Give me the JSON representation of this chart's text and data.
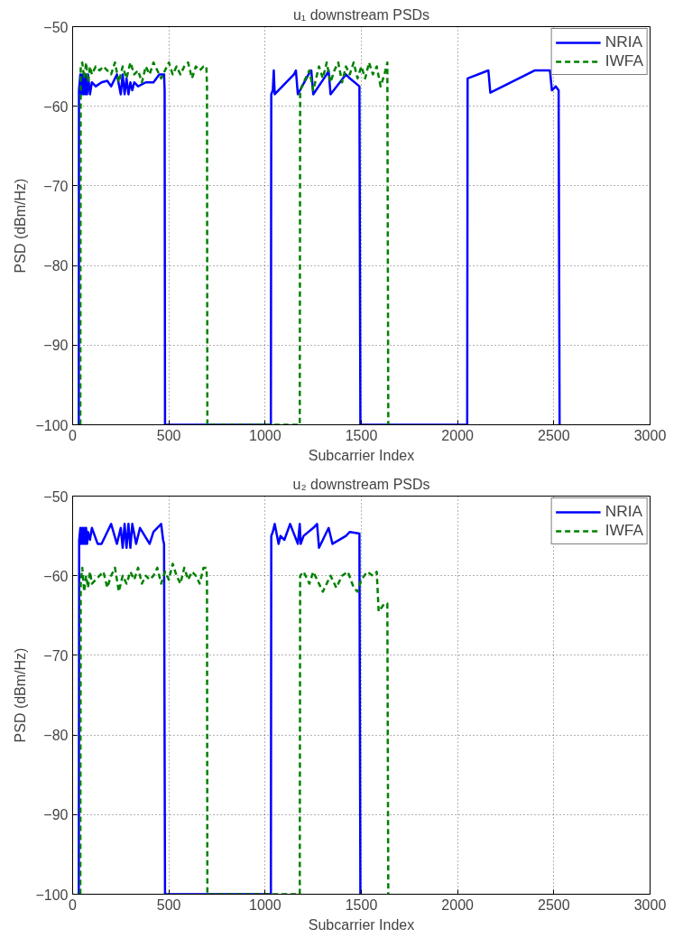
{
  "chart_data": [
    {
      "type": "line",
      "title": "u₁ downstream PSDs",
      "xlabel": "Subcarrier Index",
      "ylabel": "PSD (dBm/Hz)",
      "xlim": [
        0,
        3000
      ],
      "ylim": [
        -100,
        -50
      ],
      "xticks": [
        0,
        500,
        1000,
        1500,
        2000,
        2500,
        3000
      ],
      "yticks": [
        -100,
        -90,
        -80,
        -70,
        -60,
        -50
      ],
      "grid": true,
      "legend": "top right",
      "series": [
        {
          "name": "NRIA",
          "color": "#0000ff",
          "line_style": "solid",
          "x": [
            32,
            33,
            40,
            45,
            50,
            55,
            60,
            65,
            70,
            75,
            80,
            90,
            100,
            120,
            150,
            180,
            200,
            230,
            250,
            260,
            270,
            280,
            290,
            300,
            310,
            320,
            340,
            380,
            420,
            450,
            475,
            478,
            480,
            1030,
            1032,
            1040,
            1045,
            1050,
            1150,
            1160,
            1170,
            1230,
            1240,
            1250,
            1320,
            1330,
            1340,
            1420,
            1440,
            1490,
            1495,
            2050,
            2052,
            2160,
            2170,
            2400,
            2480,
            2490,
            2510,
            2525,
            2530
          ],
          "values": [
            -100,
            -58,
            -56,
            -58.5,
            -56,
            -58.5,
            -56,
            -58.5,
            -56,
            -58.5,
            -56,
            -58.5,
            -57,
            -57.5,
            -57,
            -56.8,
            -57.5,
            -56,
            -58.5,
            -56,
            -58.5,
            -56.5,
            -58.5,
            -57,
            -58,
            -57,
            -57.5,
            -57,
            -57,
            -56,
            -56,
            -58,
            -100,
            -100,
            -58.5,
            -58,
            -55.5,
            -58.5,
            -56,
            -55.5,
            -58.5,
            -55.8,
            -55.5,
            -58.5,
            -56,
            -55.5,
            -58.5,
            -56,
            -56.5,
            -57.5,
            -100,
            -100,
            -56.5,
            -55.5,
            -58.3,
            -55.5,
            -55.5,
            -58,
            -57.5,
            -58,
            -100
          ]
        },
        {
          "name": "IWFA",
          "color": "#008000",
          "line_style": "dashed",
          "x": [
            40,
            42,
            50,
            60,
            70,
            80,
            90,
            100,
            120,
            140,
            160,
            180,
            200,
            220,
            240,
            260,
            280,
            300,
            320,
            340,
            360,
            380,
            400,
            420,
            440,
            460,
            480,
            500,
            520,
            540,
            560,
            580,
            600,
            620,
            640,
            660,
            680,
            695,
            698,
            700,
            1180,
            1182,
            1200,
            1230,
            1250,
            1280,
            1300,
            1320,
            1340,
            1360,
            1380,
            1400,
            1420,
            1440,
            1460,
            1480,
            1500,
            1520,
            1540,
            1560,
            1580,
            1600,
            1620,
            1635,
            1640
          ],
          "values": [
            -100,
            -55,
            -54.5,
            -56.5,
            -54.5,
            -57,
            -55,
            -56,
            -55,
            -55.5,
            -55,
            -55.5,
            -56,
            -54.5,
            -57,
            -55,
            -56.5,
            -54.5,
            -56,
            -55.5,
            -57,
            -55,
            -56,
            -54.5,
            -55.5,
            -56.5,
            -55.5,
            -54.5,
            -56,
            -55,
            -56,
            -55,
            -54.5,
            -56.5,
            -55,
            -55.5,
            -55,
            -55,
            -57.5,
            -100,
            -100,
            -58,
            -57,
            -55.5,
            -58,
            -55,
            -56.5,
            -54.5,
            -57,
            -55.5,
            -54.5,
            -57,
            -55,
            -56,
            -54.5,
            -56.5,
            -55,
            -56.5,
            -54.5,
            -56,
            -55,
            -57.5,
            -56,
            -54.5,
            -100
          ]
        }
      ]
    },
    {
      "type": "line",
      "title": "u₂ downstream PSDs",
      "xlabel": "Subcarrier Index",
      "ylabel": "PSD (dBm/Hz)",
      "xlim": [
        0,
        3000
      ],
      "ylim": [
        -100,
        -50
      ],
      "xticks": [
        0,
        500,
        1000,
        1500,
        2000,
        2500,
        3000
      ],
      "yticks": [
        -100,
        -90,
        -80,
        -70,
        -60,
        -50
      ],
      "grid": true,
      "legend": "top right",
      "series": [
        {
          "name": "NRIA",
          "color": "#0000ff",
          "line_style": "solid",
          "x": [
            32,
            34,
            40,
            45,
            50,
            55,
            60,
            65,
            70,
            75,
            80,
            90,
            100,
            130,
            150,
            180,
            200,
            230,
            250,
            260,
            270,
            280,
            290,
            300,
            310,
            330,
            350,
            400,
            420,
            460,
            470,
            475,
            480,
            1030,
            1032,
            1040,
            1050,
            1070,
            1080,
            1100,
            1130,
            1170,
            1180,
            1185,
            1200,
            1250,
            1270,
            1280,
            1330,
            1350,
            1420,
            1440,
            1490,
            1495
          ],
          "values": [
            -100,
            -55.5,
            -54,
            -56,
            -54,
            -56,
            -54,
            -56,
            -54,
            -56,
            -54.5,
            -55.5,
            -54,
            -56,
            -56,
            -54.5,
            -53.5,
            -56,
            -54,
            -56.5,
            -53.5,
            -56.5,
            -53.5,
            -56.5,
            -53.5,
            -56,
            -54,
            -56,
            -54.5,
            -53.5,
            -55.5,
            -56,
            -100,
            -100,
            -55,
            -54.5,
            -53.5,
            -56,
            -55,
            -55.5,
            -53.5,
            -56,
            -53.5,
            -56,
            -55,
            -54,
            -53.5,
            -56.5,
            -54,
            -56,
            -55,
            -54.5,
            -54.7,
            -100
          ]
        },
        {
          "name": "IWFA",
          "color": "#008000",
          "line_style": "dashed",
          "x": [
            40,
            42,
            50,
            60,
            70,
            80,
            90,
            100,
            120,
            140,
            160,
            180,
            200,
            220,
            240,
            260,
            280,
            300,
            320,
            340,
            360,
            380,
            400,
            420,
            440,
            460,
            480,
            500,
            520,
            540,
            560,
            580,
            600,
            620,
            640,
            660,
            680,
            695,
            698,
            700,
            1180,
            1182,
            1200,
            1230,
            1250,
            1270,
            1300,
            1320,
            1340,
            1370,
            1400,
            1430,
            1460,
            1480,
            1500,
            1530,
            1560,
            1580,
            1590,
            1620,
            1635,
            1640
          ],
          "values": [
            -100,
            -61,
            -59,
            -62,
            -60,
            -61.5,
            -59.5,
            -61,
            -60.5,
            -60,
            -59.5,
            -61.5,
            -60,
            -59,
            -62,
            -60,
            -61,
            -59.5,
            -60.5,
            -59,
            -61,
            -60,
            -60.5,
            -60,
            -59,
            -61,
            -59.5,
            -60.5,
            -58.5,
            -60,
            -61,
            -59,
            -60.5,
            -59.5,
            -60,
            -61,
            -59,
            -59,
            -60.5,
            -100,
            -100,
            -60,
            -59.5,
            -61,
            -59.5,
            -60.5,
            -62,
            -61,
            -60,
            -61.5,
            -60,
            -59.5,
            -61.5,
            -62,
            -60.5,
            -59.5,
            -60,
            -59.5,
            -64.5,
            -63.5,
            -63.5,
            -100
          ]
        }
      ]
    }
  ]
}
